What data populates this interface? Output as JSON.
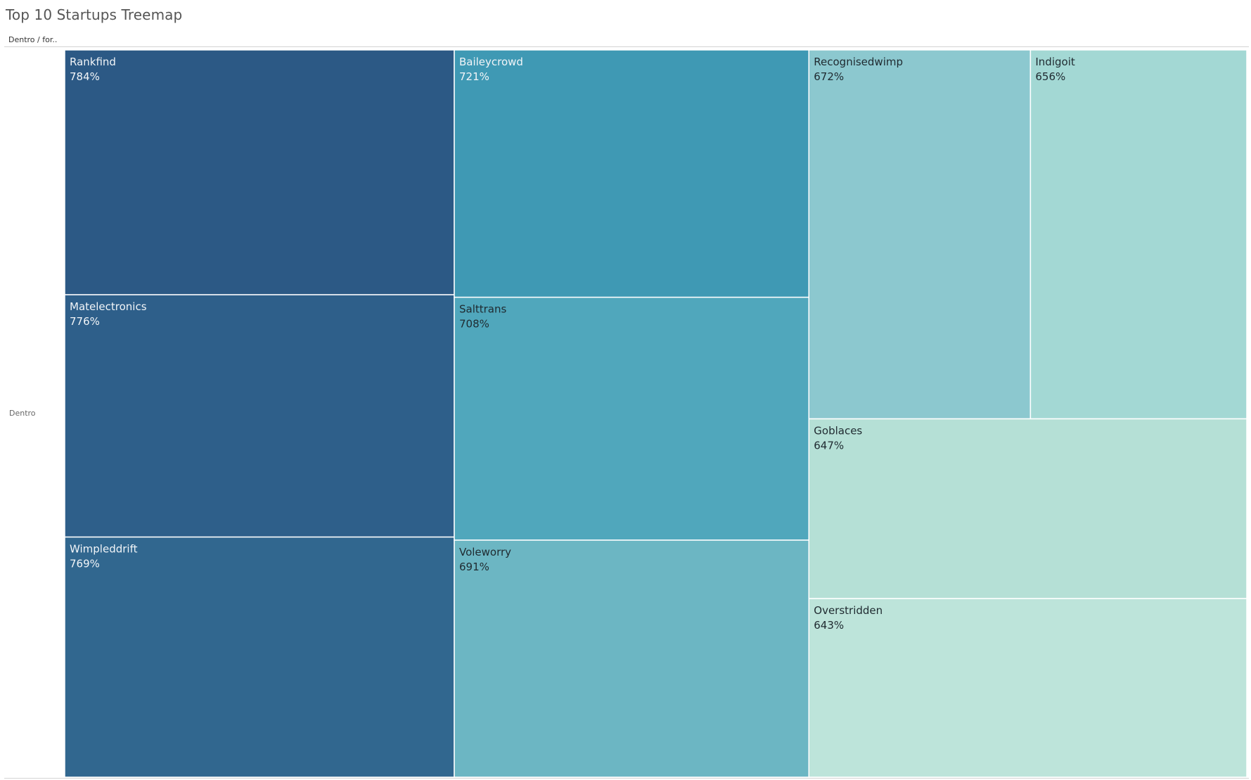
{
  "title": "Top 10 Startups Treemap",
  "header_label": "Dentro / for..",
  "row_label": "Dentro",
  "chart_data": {
    "type": "treemap",
    "title": "Top 10 Startups Treemap",
    "group": "Dentro",
    "unit": "%",
    "items": [
      {
        "name": "Rankfind",
        "value": 784,
        "label": "784%",
        "color": "#2c5985"
      },
      {
        "name": "Matelectronics",
        "value": 776,
        "label": "776%",
        "color": "#2e5f8a"
      },
      {
        "name": "Wimpleddrift",
        "value": 769,
        "label": "769%",
        "color": "#31678f"
      },
      {
        "name": "Baileycrowd",
        "value": 721,
        "label": "721%",
        "color": "#3f99b4"
      },
      {
        "name": "Salttrans",
        "value": 708,
        "label": "708%",
        "color": "#50a7bc"
      },
      {
        "name": "Voleworry",
        "value": 691,
        "label": "691%",
        "color": "#6cb6c3"
      },
      {
        "name": "Recognisedwimp",
        "value": 672,
        "label": "672%",
        "color": "#8cc8cf"
      },
      {
        "name": "Indigoit",
        "value": 656,
        "label": "656%",
        "color": "#a3d8d4"
      },
      {
        "name": "Goblaces",
        "value": 647,
        "label": "647%",
        "color": "#b5e0d6"
      },
      {
        "name": "Overstridden",
        "value": 643,
        "label": "643%",
        "color": "#bde4da"
      }
    ]
  }
}
